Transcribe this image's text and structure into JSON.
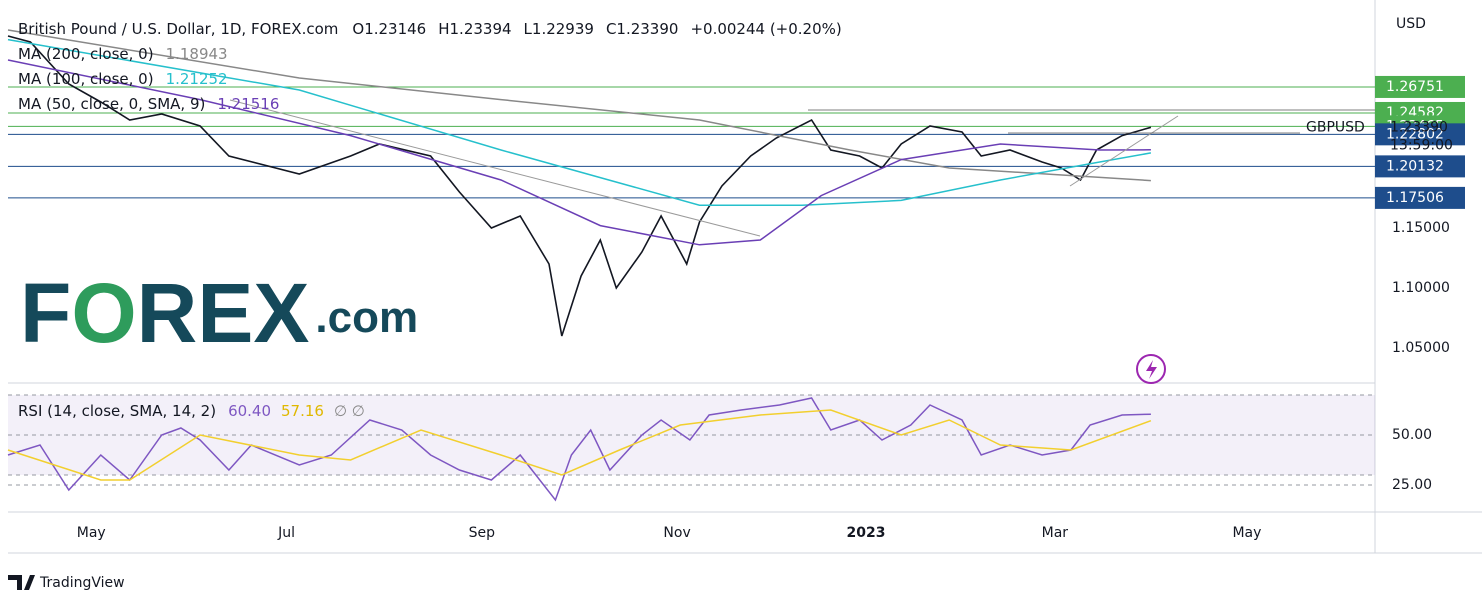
{
  "chart_data": [
    {
      "type": "line",
      "title": "British Pound / U.S. Dollar, 1D, FOREX.com",
      "ohlc": [
        "O1.23146",
        "H1.23394",
        "L1.22939",
        "C1.23390",
        "+0.00244 (+0.20%)"
      ],
      "axis_label": "USD",
      "countdown": "13:59:00",
      "watermark": [
        "F",
        "O",
        "REX",
        ".com"
      ],
      "xlim": [
        0,
        427
      ],
      "xticks": [
        {
          "value": 26,
          "label": "May"
        },
        {
          "value": 87,
          "label": "Jul"
        },
        {
          "value": 148,
          "label": "Sep"
        },
        {
          "value": 209,
          "label": "Nov"
        },
        {
          "value": 268,
          "label": "2023"
        },
        {
          "value": 327,
          "label": "Mar"
        },
        {
          "value": 387,
          "label": "May"
        }
      ],
      "ylim": [
        1.0233,
        1.3333
      ],
      "yticks": [
        {
          "value": 1.05,
          "label": "1.05000"
        },
        {
          "value": 1.1,
          "label": "1.10000"
        },
        {
          "value": 1.15,
          "label": "1.15000"
        }
      ],
      "grid": false,
      "series": [
        {
          "name": "GBPUSD",
          "color": "#131722",
          "x": [
            0,
            7,
            19,
            29,
            38,
            48,
            60,
            69,
            91,
            107,
            116,
            132,
            141,
            151,
            160,
            169,
            173,
            179,
            185,
            190,
            198,
            204,
            212,
            216,
            223,
            232,
            240,
            251,
            257,
            266,
            273,
            279,
            288,
            298,
            304,
            313,
            323,
            329,
            335,
            340,
            348,
            357
          ],
          "values": [
            1.31,
            1.305,
            1.27,
            1.255,
            1.24,
            1.245,
            1.235,
            1.21,
            1.195,
            1.21,
            1.22,
            1.21,
            1.18,
            1.15,
            1.16,
            1.12,
            1.06,
            1.11,
            1.14,
            1.1,
            1.13,
            1.16,
            1.12,
            1.155,
            1.185,
            1.21,
            1.225,
            1.24,
            1.215,
            1.21,
            1.2,
            1.22,
            1.235,
            1.23,
            1.21,
            1.215,
            1.205,
            1.2,
            1.19,
            1.215,
            1.227,
            1.2339
          ]
        },
        {
          "name": "MA (200, close, 0)",
          "last_label": "1.18943",
          "color": "#888888",
          "x": [
            0,
            91,
            154,
            216,
            263,
            294,
            357
          ],
          "values": [
            1.315,
            1.275,
            1.257,
            1.24,
            1.215,
            1.2,
            1.18943
          ]
        },
        {
          "name": "MA (100, close, 0)",
          "last_label": "1.21252",
          "color": "#26c0cc",
          "x": [
            0,
            91,
            154,
            216,
            248,
            279,
            310,
            341,
            357
          ],
          "values": [
            1.307,
            1.265,
            1.215,
            1.169,
            1.169,
            1.173,
            1.19,
            1.205,
            1.21252
          ]
        },
        {
          "name": "MA (50, close, 0, SMA, 9)",
          "last_label": "1.21516",
          "color": "#6a3fb5",
          "x": [
            0,
            60,
            107,
            154,
            185,
            216,
            235,
            254,
            279,
            310,
            341,
            357
          ],
          "values": [
            1.29,
            1.257,
            1.227,
            1.19,
            1.152,
            1.136,
            1.14,
            1.177,
            1.207,
            1.22,
            1.215,
            1.21516
          ]
        }
      ],
      "last_price": {
        "value": 1.2339,
        "label": "1.23390"
      },
      "levels": [
        {
          "value": 1.26751,
          "label": "1.26751",
          "color": "#4caf50"
        },
        {
          "value": 1.24582,
          "label": "1.24582",
          "color": "#4caf50"
        },
        {
          "value": 1.23465,
          "label": "1.23465",
          "color": "#4caf50"
        },
        {
          "value": 1.22802,
          "label": "1.22802",
          "color": "#1e4d8c"
        },
        {
          "value": 1.20132,
          "label": "1.20132",
          "color": "#1e4d8c"
        },
        {
          "value": 1.17506,
          "label": "1.17506",
          "color": "#1e4d8c"
        }
      ]
    },
    {
      "type": "line",
      "title": "RSI (14, close, SMA, 14, 2)",
      "extra": "∅ ∅",
      "ylim": [
        11.5,
        75
      ],
      "yticks": [
        {
          "value": 50,
          "label": "50.00"
        },
        {
          "value": 25,
          "label": "25.00"
        }
      ],
      "band": [
        30,
        70
      ],
      "series": [
        {
          "name": "RSI",
          "last_label": "60.40",
          "color": "#7e57c2",
          "x": [
            0,
            10,
            19,
            29,
            38,
            48,
            54,
            60,
            69,
            76,
            91,
            101,
            113,
            123,
            132,
            141,
            151,
            160,
            171,
            176,
            182,
            188,
            198,
            204,
            213,
            219,
            229,
            241,
            251,
            257,
            266,
            273,
            282,
            288,
            298,
            304,
            313,
            323,
            332,
            338,
            348,
            357
          ],
          "values": [
            40,
            45,
            22.5,
            40,
            27.5,
            50,
            53.5,
            47.5,
            32.5,
            45,
            35,
            40,
            57.5,
            52.5,
            40,
            32.5,
            27.5,
            40,
            17.5,
            40,
            52.5,
            32.5,
            50,
            57.5,
            47.5,
            60,
            62.5,
            65,
            68.5,
            52.5,
            57.5,
            47.5,
            55,
            65,
            57.5,
            40,
            45,
            40,
            42.5,
            55,
            60,
            60.4
          ]
        },
        {
          "name": "SMA",
          "last_label": "57.16",
          "color": "#f2cf2e",
          "x": [
            0,
            29,
            38,
            60,
            91,
            107,
            129,
            154,
            173,
            191,
            210,
            235,
            257,
            279,
            294,
            310,
            332,
            357
          ],
          "values": [
            42.5,
            27.5,
            27.5,
            50,
            40,
            37.5,
            52.5,
            40,
            30,
            42.5,
            55,
            60,
            62.5,
            50,
            57.5,
            45,
            42.5,
            57.16
          ]
        }
      ]
    }
  ],
  "footer": "TradingView"
}
